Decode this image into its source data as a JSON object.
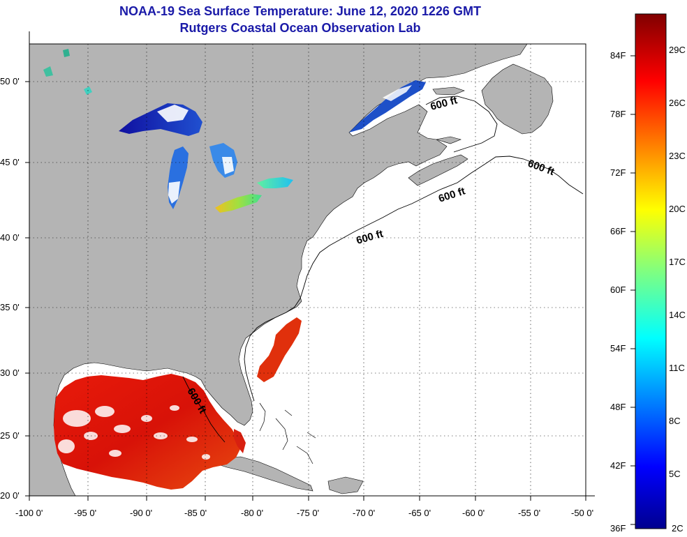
{
  "title": "NOAA-19 Sea Surface Temperature:  June 12, 2020 1226 GMT",
  "subtitle": "Rutgers Coastal Ocean Observation Lab",
  "colors": {
    "title": "#1a1aa8",
    "land": "#b4b4b4",
    "ocean_nodata": "#ffffff",
    "grid": "#000000"
  },
  "axes": {
    "lon_ticks": [
      "-100 0'",
      "-95 0'",
      "-90 0'",
      "-85 0'",
      "-80 0'",
      "-75 0'",
      "-70 0'",
      "-65 0'",
      "-60 0'",
      "-55 0'",
      "-50 0'"
    ],
    "lat_ticks": [
      "50 0'",
      "45 0'",
      "40 0'",
      "35 0'",
      "30 0'",
      "25 0'",
      "20 0'"
    ],
    "lon_range": [
      -100,
      -50
    ],
    "lat_range": [
      20,
      52
    ]
  },
  "contour_labels": [
    "600 ft",
    "600 ft",
    "600 ft",
    "600 ft",
    "600 ft"
  ],
  "colorbar": {
    "fahrenheit": [
      "84F",
      "78F",
      "72F",
      "66F",
      "60F",
      "54F",
      "48F",
      "42F",
      "36F"
    ],
    "celsius": [
      "29C",
      "26C",
      "23C",
      "20C",
      "17C",
      "14C",
      "11C",
      "8C",
      "5C",
      "2C"
    ],
    "colormap": "jet"
  },
  "regions": {
    "gulf_of_mexico": "warm 26-29C",
    "florida_atlantic_coast": "warm 26-28C",
    "great_lakes": "cold 5-17C",
    "gulf_of_st_lawrence": "cold 5-8C"
  }
}
